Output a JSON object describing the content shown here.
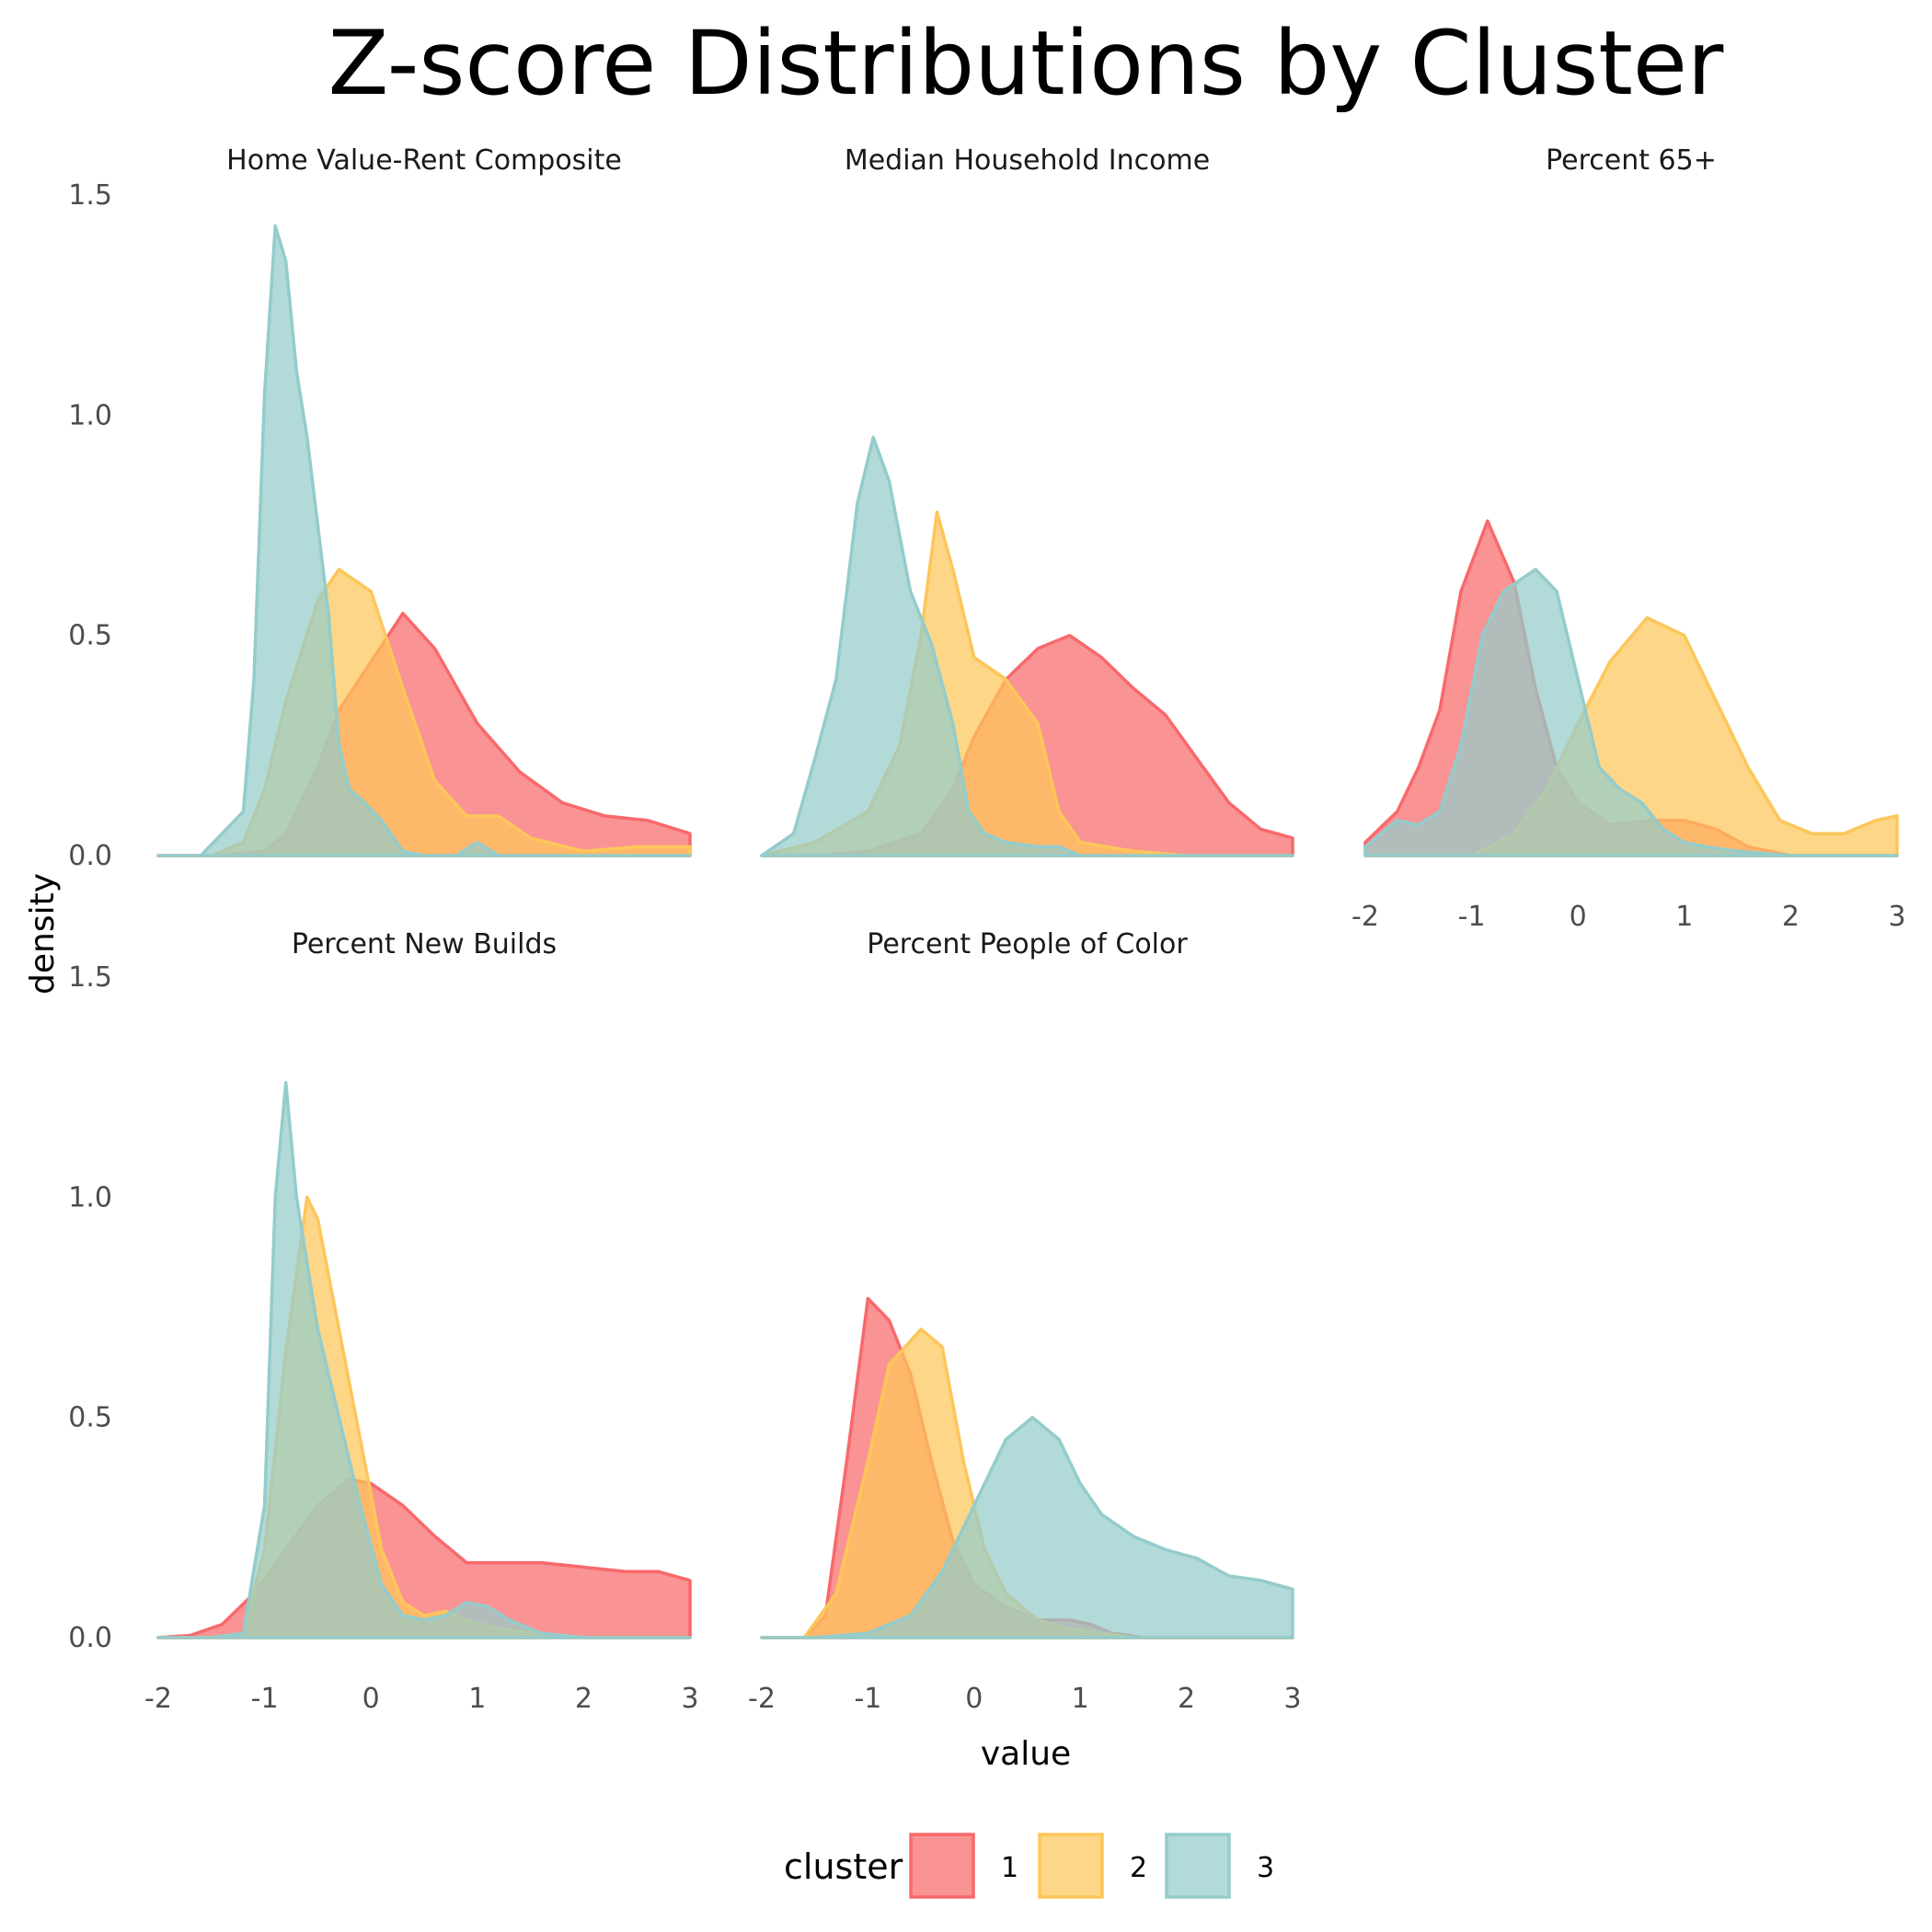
{
  "chart_data": {
    "type": "area",
    "title": "Z-score Distributions by Cluster",
    "xlabel": "value",
    "ylabel": "density",
    "xlim": [
      -2,
      3
    ],
    "ylim": [
      0,
      1.5
    ],
    "x_ticks": [
      "-2",
      "-1",
      "0",
      "1",
      "2",
      "3"
    ],
    "y_ticks": [
      "0.0",
      "0.5",
      "1.0",
      "1.5"
    ],
    "legend": {
      "title": "cluster",
      "position": "bottom"
    },
    "grid": false,
    "clusters": [
      {
        "name": "1",
        "color": "#F8696B"
      },
      {
        "name": "2",
        "color": "#FDC65A"
      },
      {
        "name": "3",
        "color": "#94CCCB"
      }
    ],
    "panels": [
      {
        "label": "Home Value-Rent Composite",
        "series": [
          {
            "cluster": "1",
            "x": [
              -2,
              -1.5,
              -1.0,
              -0.8,
              -0.5,
              -0.3,
              0,
              0.3,
              0.6,
              1.0,
              1.4,
              1.8,
              2.2,
              2.6,
              3.0
            ],
            "y": [
              0,
              0,
              0.01,
              0.05,
              0.2,
              0.33,
              0.44,
              0.55,
              0.47,
              0.3,
              0.19,
              0.12,
              0.09,
              0.08,
              0.05
            ]
          },
          {
            "cluster": "2",
            "x": [
              -2,
              -1.5,
              -1.2,
              -1.0,
              -0.8,
              -0.5,
              -0.3,
              0,
              0.3,
              0.6,
              0.9,
              1.2,
              1.5,
              2.0,
              2.5,
              3.0
            ],
            "y": [
              0,
              0,
              0.03,
              0.15,
              0.35,
              0.58,
              0.65,
              0.6,
              0.38,
              0.17,
              0.09,
              0.09,
              0.04,
              0.01,
              0.02,
              0.02
            ]
          },
          {
            "cluster": "3",
            "x": [
              -2,
              -1.6,
              -1.4,
              -1.2,
              -1.1,
              -1.0,
              -0.9,
              -0.8,
              -0.7,
              -0.6,
              -0.5,
              -0.4,
              -0.3,
              -0.2,
              -0.1,
              0.1,
              0.3,
              0.5,
              0.8,
              1.0,
              1.2,
              1.5,
              3.0
            ],
            "y": [
              0,
              0,
              0.05,
              0.1,
              0.4,
              1.05,
              1.43,
              1.35,
              1.1,
              0.95,
              0.75,
              0.55,
              0.25,
              0.15,
              0.13,
              0.08,
              0.01,
              0,
              0,
              0.03,
              0,
              0,
              0
            ]
          }
        ]
      },
      {
        "label": "Median Household Income",
        "series": [
          {
            "cluster": "1",
            "x": [
              -2,
              -1.5,
              -1.0,
              -0.5,
              -0.2,
              0,
              0.3,
              0.6,
              0.9,
              1.2,
              1.5,
              1.8,
              2.1,
              2.4,
              2.7,
              3.0
            ],
            "y": [
              0,
              0,
              0.01,
              0.05,
              0.15,
              0.27,
              0.4,
              0.47,
              0.5,
              0.45,
              0.38,
              0.32,
              0.22,
              0.12,
              0.06,
              0.04
            ]
          },
          {
            "cluster": "2",
            "x": [
              -2,
              -1.5,
              -1.0,
              -0.7,
              -0.5,
              -0.35,
              -0.2,
              0,
              0.3,
              0.6,
              0.8,
              1.0,
              1.5,
              2.0,
              3.0
            ],
            "y": [
              0,
              0.03,
              0.1,
              0.25,
              0.5,
              0.78,
              0.65,
              0.45,
              0.4,
              0.3,
              0.1,
              0.03,
              0.01,
              0,
              0
            ]
          },
          {
            "cluster": "3",
            "x": [
              -2,
              -1.7,
              -1.5,
              -1.3,
              -1.1,
              -0.95,
              -0.8,
              -0.6,
              -0.4,
              -0.2,
              -0.05,
              0.1,
              0.3,
              0.6,
              0.8,
              1.0,
              1.3,
              1.6,
              2.0,
              3.0
            ],
            "y": [
              0,
              0.05,
              0.22,
              0.4,
              0.8,
              0.95,
              0.85,
              0.6,
              0.48,
              0.3,
              0.1,
              0.05,
              0.03,
              0.02,
              0.02,
              0,
              0,
              0,
              0,
              0
            ]
          }
        ]
      },
      {
        "label": "Percent 65+",
        "series": [
          {
            "cluster": "1",
            "x": [
              -2,
              -1.7,
              -1.5,
              -1.3,
              -1.1,
              -0.85,
              -0.6,
              -0.4,
              -0.2,
              0,
              0.3,
              0.7,
              1.0,
              1.3,
              1.6,
              2.0,
              3.0
            ],
            "y": [
              0.03,
              0.1,
              0.2,
              0.33,
              0.6,
              0.76,
              0.62,
              0.38,
              0.2,
              0.12,
              0.07,
              0.08,
              0.08,
              0.06,
              0.02,
              0,
              0
            ]
          },
          {
            "cluster": "2",
            "x": [
              -2,
              -1.5,
              -1.0,
              -0.6,
              -0.3,
              0,
              0.3,
              0.65,
              1.0,
              1.3,
              1.6,
              1.9,
              2.2,
              2.5,
              2.8,
              3.0
            ],
            "y": [
              0,
              0,
              0,
              0.05,
              0.15,
              0.3,
              0.44,
              0.54,
              0.5,
              0.35,
              0.2,
              0.08,
              0.05,
              0.05,
              0.08,
              0.09
            ]
          },
          {
            "cluster": "3",
            "x": [
              -2,
              -1.7,
              -1.5,
              -1.3,
              -1.1,
              -0.9,
              -0.7,
              -0.4,
              -0.2,
              0,
              0.2,
              0.4,
              0.6,
              0.8,
              1.0,
              1.2,
              1.5,
              2.0,
              3.0
            ],
            "y": [
              0.02,
              0.08,
              0.07,
              0.1,
              0.25,
              0.5,
              0.6,
              0.65,
              0.6,
              0.4,
              0.2,
              0.15,
              0.12,
              0.06,
              0.03,
              0.02,
              0.01,
              0,
              0
            ]
          }
        ]
      },
      {
        "label": "Percent New Builds",
        "series": [
          {
            "cluster": "1",
            "x": [
              -2,
              -1.7,
              -1.4,
              -1.1,
              -0.8,
              -0.5,
              -0.2,
              0,
              0.3,
              0.6,
              0.9,
              1.2,
              1.6,
              2.0,
              2.4,
              2.7,
              3.0
            ],
            "y": [
              0,
              0.005,
              0.03,
              0.1,
              0.2,
              0.3,
              0.36,
              0.35,
              0.3,
              0.23,
              0.17,
              0.17,
              0.17,
              0.16,
              0.15,
              0.15,
              0.13
            ]
          },
          {
            "cluster": "2",
            "x": [
              -2,
              -1.5,
              -1.2,
              -1.0,
              -0.8,
              -0.6,
              -0.5,
              -0.3,
              -0.1,
              0.1,
              0.3,
              0.5,
              0.7,
              0.9,
              1.2,
              1.6,
              2.0,
              3.0
            ],
            "y": [
              0,
              0,
              0.01,
              0.2,
              0.65,
              1.0,
              0.95,
              0.7,
              0.45,
              0.2,
              0.08,
              0.05,
              0.06,
              0.04,
              0.02,
              0.01,
              0,
              0
            ]
          },
          {
            "cluster": "3",
            "x": [
              -2,
              -1.5,
              -1.2,
              -1.0,
              -0.9,
              -0.8,
              -0.7,
              -0.6,
              -0.5,
              -0.3,
              -0.1,
              0.1,
              0.3,
              0.5,
              0.7,
              0.9,
              1.1,
              1.3,
              1.6,
              2.0,
              3.0
            ],
            "y": [
              0,
              0,
              0.01,
              0.3,
              1.0,
              1.26,
              1.0,
              0.85,
              0.7,
              0.5,
              0.3,
              0.12,
              0.05,
              0.04,
              0.05,
              0.08,
              0.07,
              0.04,
              0.01,
              0,
              0
            ]
          }
        ]
      },
      {
        "label": "Percent People of Color",
        "series": [
          {
            "cluster": "1",
            "x": [
              -2,
              -1.6,
              -1.4,
              -1.2,
              -1.0,
              -0.8,
              -0.6,
              -0.4,
              -0.2,
              0,
              0.3,
              0.6,
              0.9,
              1.1,
              1.3,
              1.6,
              2.0,
              3.0
            ],
            "y": [
              0,
              0,
              0.05,
              0.4,
              0.77,
              0.72,
              0.6,
              0.4,
              0.22,
              0.12,
              0.07,
              0.04,
              0.04,
              0.03,
              0.01,
              0,
              0,
              0
            ]
          },
          {
            "cluster": "2",
            "x": [
              -2,
              -1.6,
              -1.3,
              -1.0,
              -0.8,
              -0.5,
              -0.3,
              -0.1,
              0.1,
              0.3,
              0.6,
              0.9,
              1.2,
              1.5,
              2.0,
              3.0
            ],
            "y": [
              0,
              0,
              0.1,
              0.4,
              0.62,
              0.7,
              0.66,
              0.4,
              0.2,
              0.1,
              0.04,
              0.02,
              0.01,
              0,
              0,
              0
            ]
          },
          {
            "cluster": "3",
            "x": [
              -2,
              -1.5,
              -1.0,
              -0.6,
              -0.3,
              0,
              0.3,
              0.55,
              0.8,
              1.0,
              1.2,
              1.5,
              1.8,
              2.1,
              2.4,
              2.7,
              3.0
            ],
            "y": [
              0,
              0,
              0.01,
              0.05,
              0.15,
              0.3,
              0.45,
              0.5,
              0.45,
              0.35,
              0.28,
              0.23,
              0.2,
              0.18,
              0.14,
              0.13,
              0.11
            ]
          }
        ]
      }
    ]
  }
}
